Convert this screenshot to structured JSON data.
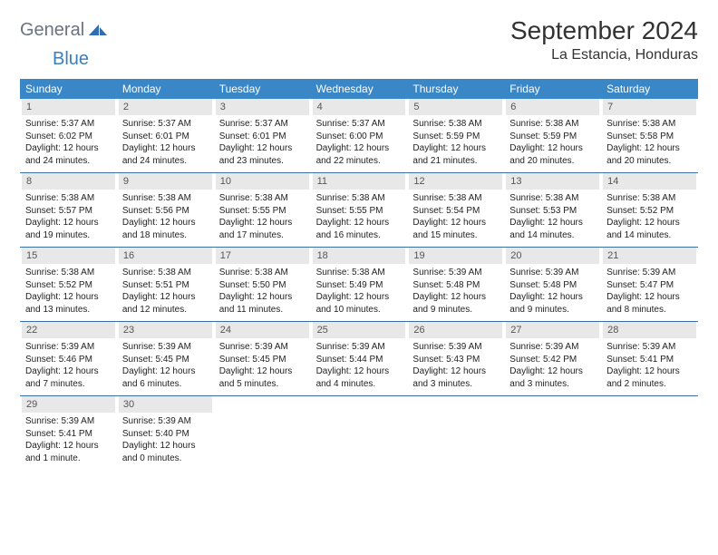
{
  "brand": {
    "general": "General",
    "blue": "Blue"
  },
  "title": "September 2024",
  "location": "La Estancia, Honduras",
  "colors": {
    "header_bg": "#3a87c7",
    "header_text": "#ffffff",
    "daynum_bg": "#e8e8e8",
    "daynum_text": "#555555",
    "week_border": "#3a6fa0",
    "body_text": "#222222",
    "brand_grey": "#6b7280",
    "brand_blue": "#3a7fbf",
    "page_bg": "#ffffff"
  },
  "day_labels": [
    "Sunday",
    "Monday",
    "Tuesday",
    "Wednesday",
    "Thursday",
    "Friday",
    "Saturday"
  ],
  "weeks": [
    [
      {
        "n": "1",
        "sunrise": "Sunrise: 5:37 AM",
        "sunset": "Sunset: 6:02 PM",
        "d1": "Daylight: 12 hours",
        "d2": "and 24 minutes."
      },
      {
        "n": "2",
        "sunrise": "Sunrise: 5:37 AM",
        "sunset": "Sunset: 6:01 PM",
        "d1": "Daylight: 12 hours",
        "d2": "and 24 minutes."
      },
      {
        "n": "3",
        "sunrise": "Sunrise: 5:37 AM",
        "sunset": "Sunset: 6:01 PM",
        "d1": "Daylight: 12 hours",
        "d2": "and 23 minutes."
      },
      {
        "n": "4",
        "sunrise": "Sunrise: 5:37 AM",
        "sunset": "Sunset: 6:00 PM",
        "d1": "Daylight: 12 hours",
        "d2": "and 22 minutes."
      },
      {
        "n": "5",
        "sunrise": "Sunrise: 5:38 AM",
        "sunset": "Sunset: 5:59 PM",
        "d1": "Daylight: 12 hours",
        "d2": "and 21 minutes."
      },
      {
        "n": "6",
        "sunrise": "Sunrise: 5:38 AM",
        "sunset": "Sunset: 5:59 PM",
        "d1": "Daylight: 12 hours",
        "d2": "and 20 minutes."
      },
      {
        "n": "7",
        "sunrise": "Sunrise: 5:38 AM",
        "sunset": "Sunset: 5:58 PM",
        "d1": "Daylight: 12 hours",
        "d2": "and 20 minutes."
      }
    ],
    [
      {
        "n": "8",
        "sunrise": "Sunrise: 5:38 AM",
        "sunset": "Sunset: 5:57 PM",
        "d1": "Daylight: 12 hours",
        "d2": "and 19 minutes."
      },
      {
        "n": "9",
        "sunrise": "Sunrise: 5:38 AM",
        "sunset": "Sunset: 5:56 PM",
        "d1": "Daylight: 12 hours",
        "d2": "and 18 minutes."
      },
      {
        "n": "10",
        "sunrise": "Sunrise: 5:38 AM",
        "sunset": "Sunset: 5:55 PM",
        "d1": "Daylight: 12 hours",
        "d2": "and 17 minutes."
      },
      {
        "n": "11",
        "sunrise": "Sunrise: 5:38 AM",
        "sunset": "Sunset: 5:55 PM",
        "d1": "Daylight: 12 hours",
        "d2": "and 16 minutes."
      },
      {
        "n": "12",
        "sunrise": "Sunrise: 5:38 AM",
        "sunset": "Sunset: 5:54 PM",
        "d1": "Daylight: 12 hours",
        "d2": "and 15 minutes."
      },
      {
        "n": "13",
        "sunrise": "Sunrise: 5:38 AM",
        "sunset": "Sunset: 5:53 PM",
        "d1": "Daylight: 12 hours",
        "d2": "and 14 minutes."
      },
      {
        "n": "14",
        "sunrise": "Sunrise: 5:38 AM",
        "sunset": "Sunset: 5:52 PM",
        "d1": "Daylight: 12 hours",
        "d2": "and 14 minutes."
      }
    ],
    [
      {
        "n": "15",
        "sunrise": "Sunrise: 5:38 AM",
        "sunset": "Sunset: 5:52 PM",
        "d1": "Daylight: 12 hours",
        "d2": "and 13 minutes."
      },
      {
        "n": "16",
        "sunrise": "Sunrise: 5:38 AM",
        "sunset": "Sunset: 5:51 PM",
        "d1": "Daylight: 12 hours",
        "d2": "and 12 minutes."
      },
      {
        "n": "17",
        "sunrise": "Sunrise: 5:38 AM",
        "sunset": "Sunset: 5:50 PM",
        "d1": "Daylight: 12 hours",
        "d2": "and 11 minutes."
      },
      {
        "n": "18",
        "sunrise": "Sunrise: 5:38 AM",
        "sunset": "Sunset: 5:49 PM",
        "d1": "Daylight: 12 hours",
        "d2": "and 10 minutes."
      },
      {
        "n": "19",
        "sunrise": "Sunrise: 5:39 AM",
        "sunset": "Sunset: 5:48 PM",
        "d1": "Daylight: 12 hours",
        "d2": "and 9 minutes."
      },
      {
        "n": "20",
        "sunrise": "Sunrise: 5:39 AM",
        "sunset": "Sunset: 5:48 PM",
        "d1": "Daylight: 12 hours",
        "d2": "and 9 minutes."
      },
      {
        "n": "21",
        "sunrise": "Sunrise: 5:39 AM",
        "sunset": "Sunset: 5:47 PM",
        "d1": "Daylight: 12 hours",
        "d2": "and 8 minutes."
      }
    ],
    [
      {
        "n": "22",
        "sunrise": "Sunrise: 5:39 AM",
        "sunset": "Sunset: 5:46 PM",
        "d1": "Daylight: 12 hours",
        "d2": "and 7 minutes."
      },
      {
        "n": "23",
        "sunrise": "Sunrise: 5:39 AM",
        "sunset": "Sunset: 5:45 PM",
        "d1": "Daylight: 12 hours",
        "d2": "and 6 minutes."
      },
      {
        "n": "24",
        "sunrise": "Sunrise: 5:39 AM",
        "sunset": "Sunset: 5:45 PM",
        "d1": "Daylight: 12 hours",
        "d2": "and 5 minutes."
      },
      {
        "n": "25",
        "sunrise": "Sunrise: 5:39 AM",
        "sunset": "Sunset: 5:44 PM",
        "d1": "Daylight: 12 hours",
        "d2": "and 4 minutes."
      },
      {
        "n": "26",
        "sunrise": "Sunrise: 5:39 AM",
        "sunset": "Sunset: 5:43 PM",
        "d1": "Daylight: 12 hours",
        "d2": "and 3 minutes."
      },
      {
        "n": "27",
        "sunrise": "Sunrise: 5:39 AM",
        "sunset": "Sunset: 5:42 PM",
        "d1": "Daylight: 12 hours",
        "d2": "and 3 minutes."
      },
      {
        "n": "28",
        "sunrise": "Sunrise: 5:39 AM",
        "sunset": "Sunset: 5:41 PM",
        "d1": "Daylight: 12 hours",
        "d2": "and 2 minutes."
      }
    ],
    [
      {
        "n": "29",
        "sunrise": "Sunrise: 5:39 AM",
        "sunset": "Sunset: 5:41 PM",
        "d1": "Daylight: 12 hours",
        "d2": "and 1 minute."
      },
      {
        "n": "30",
        "sunrise": "Sunrise: 5:39 AM",
        "sunset": "Sunset: 5:40 PM",
        "d1": "Daylight: 12 hours",
        "d2": "and 0 minutes."
      },
      null,
      null,
      null,
      null,
      null
    ]
  ]
}
